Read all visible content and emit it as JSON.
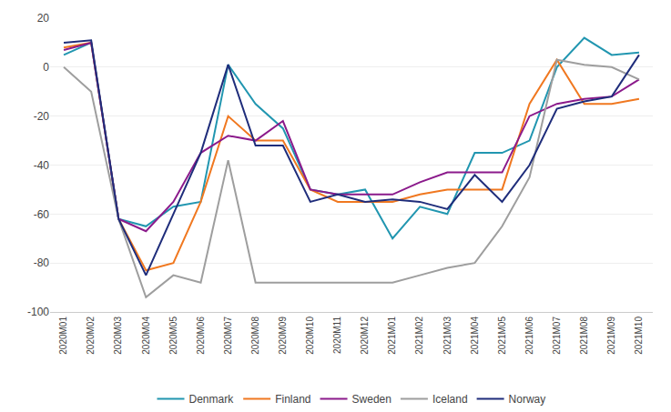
{
  "chart_data": {
    "type": "line",
    "categories": [
      "2020M01",
      "2020M02",
      "2020M03",
      "2020M04",
      "2020M05",
      "2020M06",
      "2020M07",
      "2020M08",
      "2020M09",
      "2020M10",
      "2020M11",
      "2020M12",
      "2021M01",
      "2021M02",
      "2021M03",
      "2021M04",
      "2021M05",
      "2021M06",
      "2021M07",
      "2021M08",
      "2021M09",
      "2021M10"
    ],
    "series": [
      {
        "name": "Denmark",
        "color": "#2196b0",
        "values": [
          5,
          10,
          -62,
          -65,
          -57,
          -55,
          1,
          -15,
          -25,
          -50,
          -52,
          -50,
          -70,
          -57,
          -60,
          -35,
          -35,
          -30,
          0,
          12,
          5,
          6
        ]
      },
      {
        "name": "Finland",
        "color": "#f07820",
        "values": [
          8,
          10,
          -62,
          -83,
          -80,
          -55,
          -20,
          -30,
          -30,
          -50,
          -55,
          -55,
          -55,
          -52,
          -50,
          -50,
          -50,
          -15,
          3,
          -15,
          -15,
          -13
        ]
      },
      {
        "name": "Sweden",
        "color": "#8b1a8b",
        "values": [
          7,
          10,
          -62,
          -67,
          -55,
          -35,
          -28,
          -30,
          -22,
          -50,
          -52,
          -52,
          -52,
          -47,
          -43,
          -43,
          -43,
          -20,
          -15,
          -13,
          -12,
          -5
        ]
      },
      {
        "name": "Iceland",
        "color": "#9e9e9e",
        "values": [
          0,
          -10,
          -62,
          -94,
          -85,
          -88,
          -38,
          -88,
          -88,
          -88,
          -88,
          -88,
          -88,
          -85,
          -82,
          -80,
          -65,
          -45,
          3,
          1,
          0,
          -5
        ]
      },
      {
        "name": "Norway",
        "color": "#1f2d7b",
        "values": [
          10,
          11,
          -62,
          -85,
          -60,
          -35,
          1,
          -32,
          -32,
          -55,
          -52,
          -55,
          -54,
          -55,
          -58,
          -44,
          -55,
          -40,
          -17,
          -14,
          -12,
          5
        ]
      }
    ],
    "ylim": [
      -100,
      20
    ],
    "yticks": [
      -100,
      -80,
      -60,
      -40,
      -20,
      0,
      20
    ],
    "grid": true,
    "legend": "bottom"
  }
}
